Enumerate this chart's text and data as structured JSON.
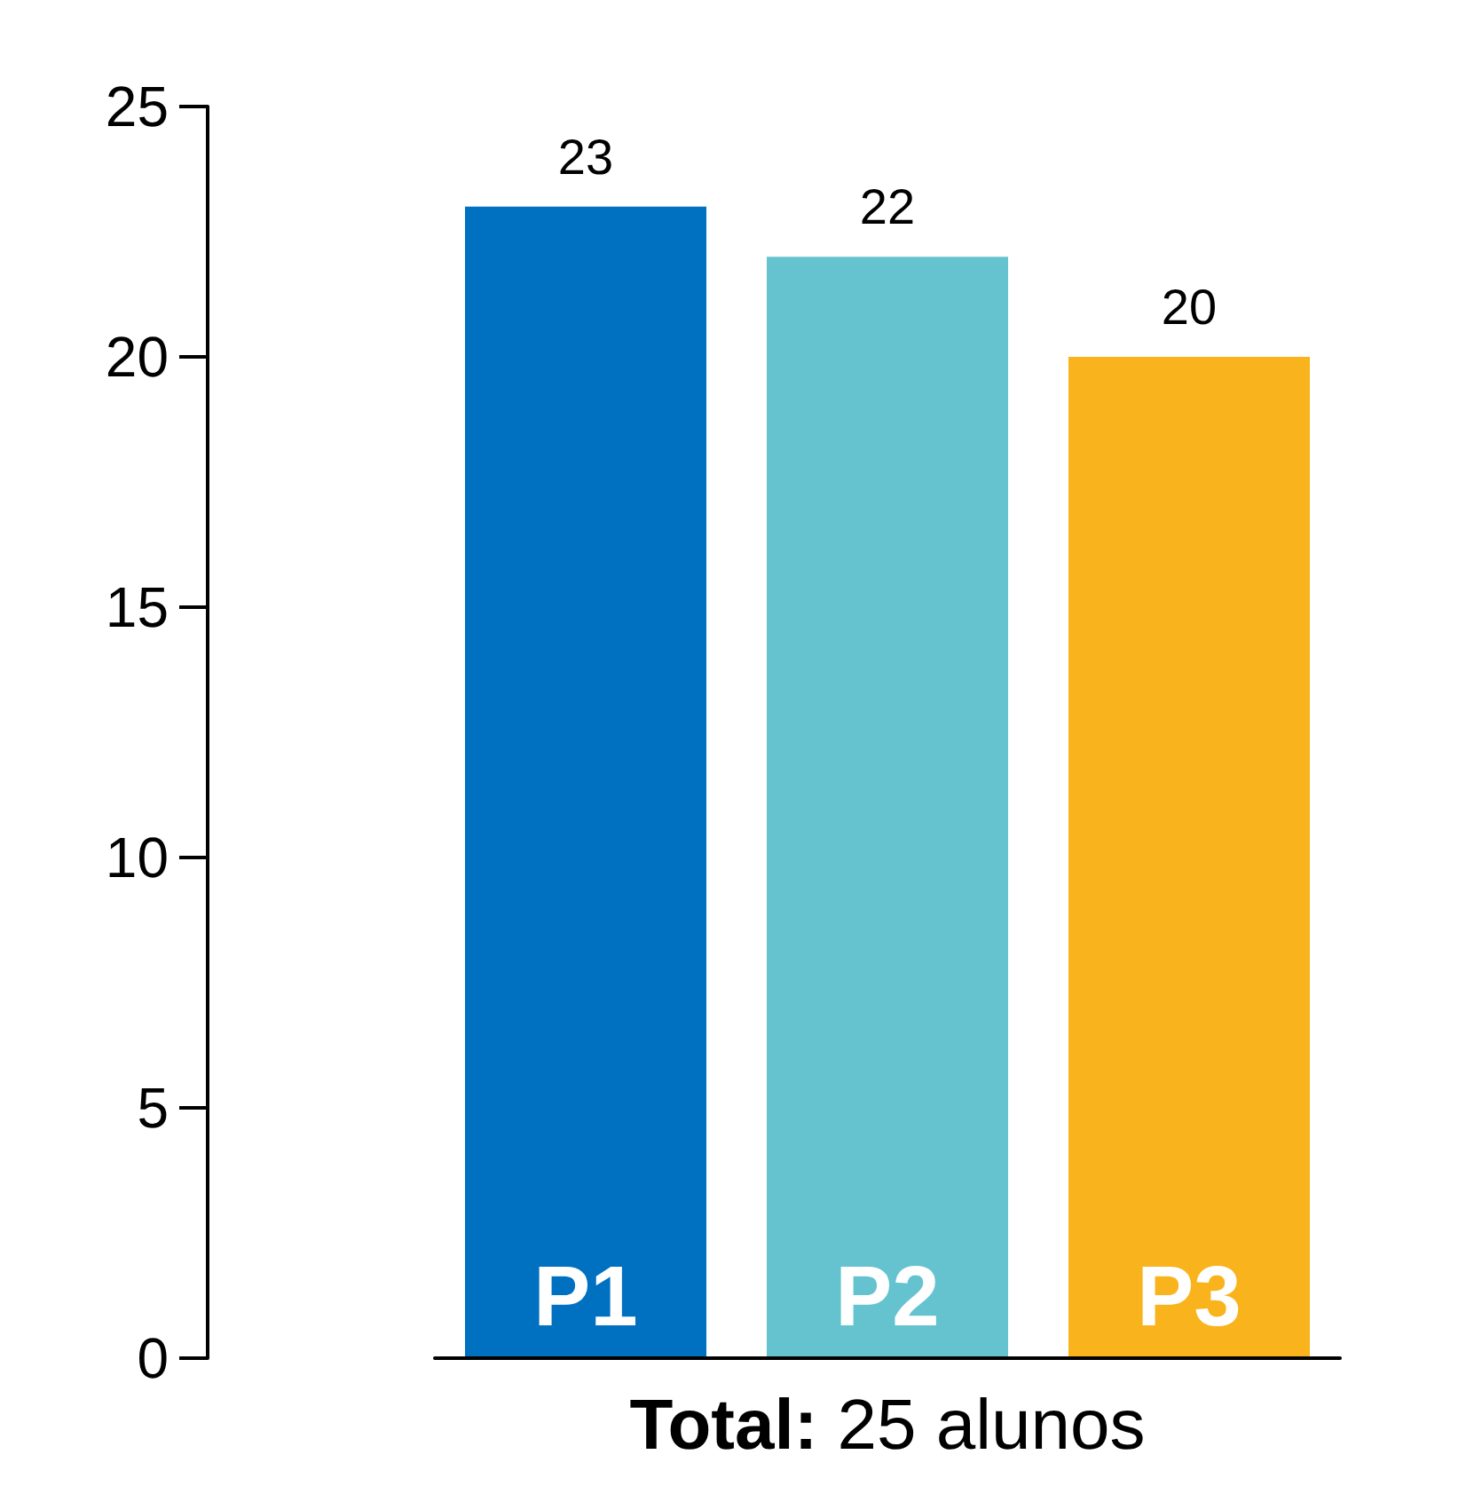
{
  "chart_data": {
    "type": "bar",
    "xlabel": "Total: 25 alunos",
    "categories": [
      "P1",
      "P2",
      "P3"
    ],
    "values": [
      23,
      22,
      20
    ],
    "colors": [
      "#0070c0",
      "#65c3d0",
      "#f9b31c"
    ],
    "ylim": [
      0,
      25
    ],
    "yticks": [
      0,
      5,
      10,
      15,
      20,
      25
    ],
    "data_labels": true,
    "grid": false
  }
}
